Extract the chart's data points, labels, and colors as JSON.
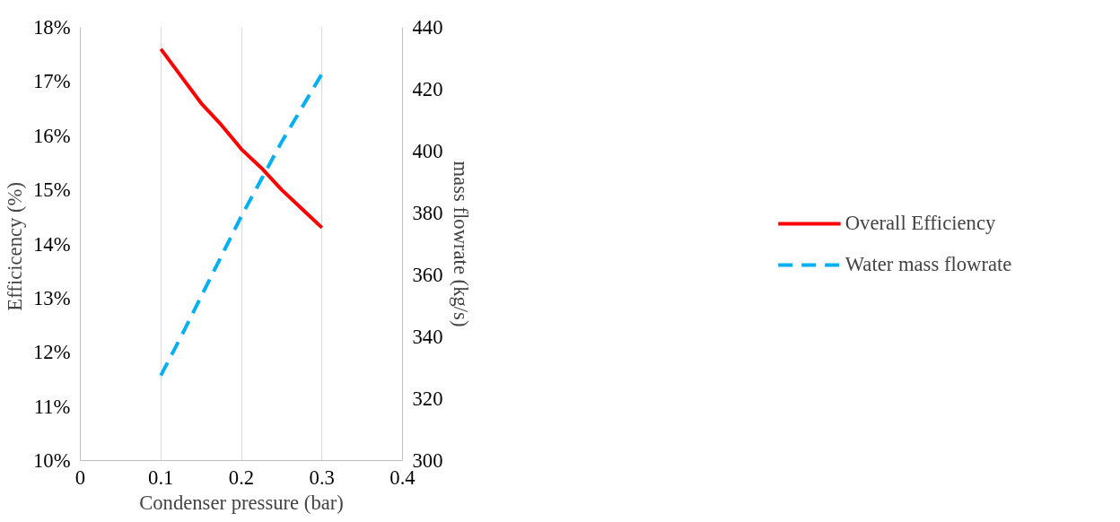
{
  "chart_data": {
    "type": "line",
    "xlabel": "Condenser pressure (bar)",
    "ylabel": "Efficicency  (%)",
    "y2label": "mass flowrate (kg/s)",
    "x": [
      0.1,
      0.125,
      0.15,
      0.175,
      0.2,
      0.225,
      0.25,
      0.275,
      0.3
    ],
    "series": [
      {
        "name": "Overall Efficiency",
        "color": "#ff0000",
        "line_style": "solid",
        "values": [
          17.6,
          17.1,
          16.6,
          16.2,
          15.75,
          15.4,
          15.0,
          14.65,
          14.3
        ]
      },
      {
        "name": "Water mass flowrate",
        "color": "#00b0f0",
        "line_style": "dashed",
        "axis": "y2",
        "values": [
          327.5,
          340,
          353,
          366,
          379,
          391,
          403,
          414,
          425
        ]
      }
    ],
    "xlim": [
      0,
      0.4
    ],
    "xticks": [
      0,
      0.1,
      0.2,
      0.3,
      0.4
    ],
    "ylim": [
      10,
      18
    ],
    "yticks": [
      {
        "value": 10,
        "label": "10%"
      },
      {
        "value": 11,
        "label": "11%"
      },
      {
        "value": 12,
        "label": "12%"
      },
      {
        "value": 13,
        "label": "13%"
      },
      {
        "value": 14,
        "label": "14%"
      },
      {
        "value": 15,
        "label": "15%"
      },
      {
        "value": 16,
        "label": "16%"
      },
      {
        "value": 17,
        "label": "17%"
      },
      {
        "value": 18,
        "label": "18%"
      }
    ],
    "y2lim": [
      300,
      440
    ],
    "y2ticks": [
      300,
      320,
      340,
      360,
      380,
      400,
      420,
      440
    ],
    "grid": "x",
    "legend": "right"
  }
}
